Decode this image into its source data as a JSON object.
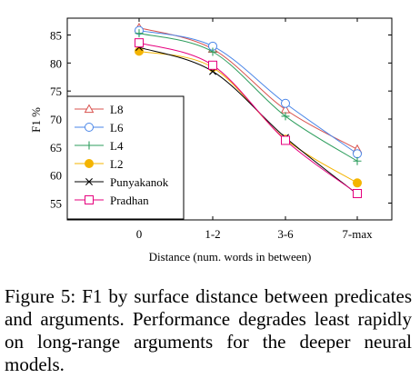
{
  "chart_data": {
    "type": "line",
    "categories": [
      "0",
      "1-2",
      "3-6",
      "7-max"
    ],
    "xlabel": "Distance (num. words in between)",
    "ylabel": "F1 %",
    "ylim": [
      52,
      88
    ],
    "yticks": [
      55,
      60,
      65,
      70,
      75,
      80,
      85
    ],
    "grid": false,
    "legend_position": "bottom-left",
    "series": [
      {
        "name": "L8",
        "marker": "triangle",
        "color": "#d9534f",
        "values": [
          86.3,
          82.5,
          71.7,
          64.6
        ]
      },
      {
        "name": "L6",
        "marker": "circle",
        "color": "#4a86e8",
        "values": [
          85.8,
          83.0,
          72.8,
          63.8
        ]
      },
      {
        "name": "L4",
        "marker": "plus",
        "color": "#2e9e5e",
        "values": [
          85.3,
          82.0,
          70.5,
          62.5
        ]
      },
      {
        "name": "L2",
        "marker": "filled-circle",
        "color": "#f4b400",
        "values": [
          82.1,
          79.2,
          66.4,
          58.6
        ]
      },
      {
        "name": "Punyakanok",
        "marker": "x",
        "color": "#000000",
        "values": [
          82.8,
          78.5,
          66.7,
          56.6
        ]
      },
      {
        "name": "Pradhan",
        "marker": "square",
        "color": "#e6007e",
        "values": [
          83.6,
          79.6,
          66.2,
          56.7
        ]
      }
    ]
  },
  "caption": "Figure 5: F1 by surface distance between predicates and arguments. Performance degrades least rapidly on long-range arguments for the deeper neural models."
}
